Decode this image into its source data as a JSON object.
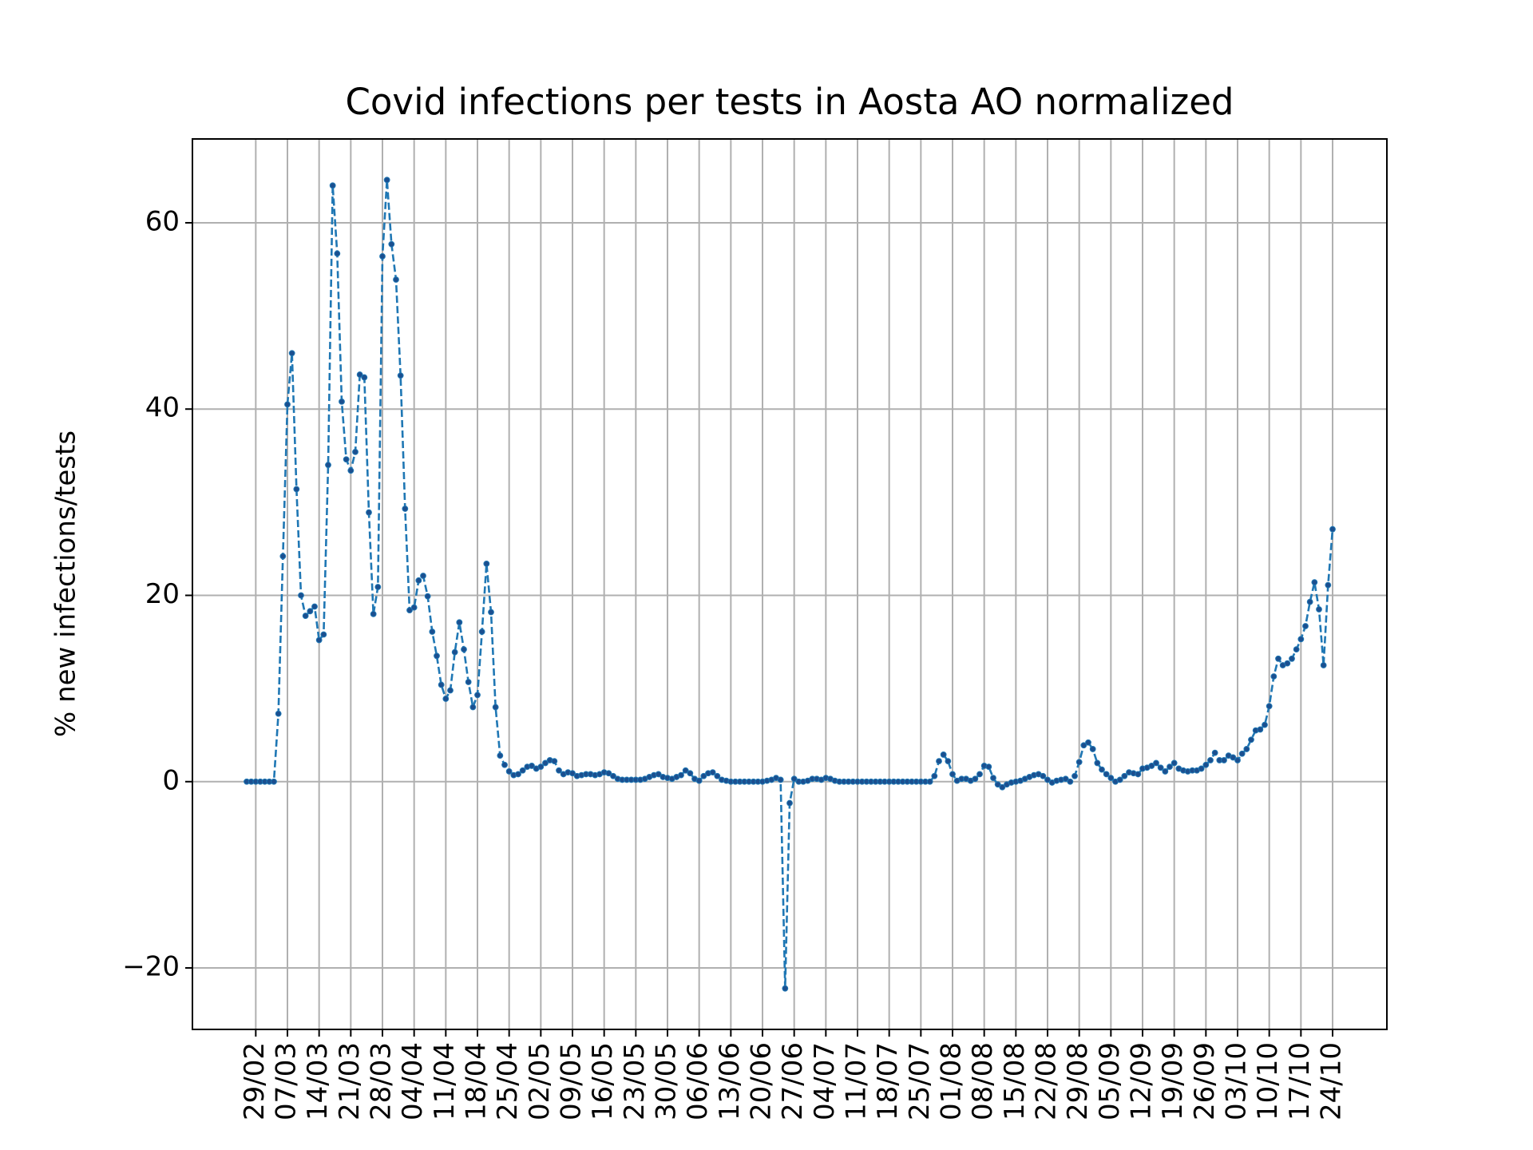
{
  "chart_data": {
    "type": "line",
    "title": "Covid infections per tests in Aosta AO normalized",
    "y_label": "% new infections/tests",
    "categories": [
      null,
      null,
      "29/02",
      null,
      null,
      null,
      null,
      null,
      null,
      "07/03",
      null,
      null,
      null,
      null,
      null,
      null,
      "14/03",
      null,
      null,
      null,
      null,
      null,
      null,
      "21/03",
      null,
      null,
      null,
      null,
      null,
      null,
      "28/03",
      null,
      null,
      null,
      null,
      null,
      null,
      "04/04",
      null,
      null,
      null,
      null,
      null,
      null,
      "11/04",
      null,
      null,
      null,
      null,
      null,
      null,
      "18/04",
      null,
      null,
      null,
      null,
      null,
      null,
      "25/04",
      null,
      null,
      null,
      null,
      null,
      null,
      "02/05",
      null,
      null,
      null,
      null,
      null,
      null,
      "09/05",
      null,
      null,
      null,
      null,
      null,
      null,
      "16/05",
      null,
      null,
      null,
      null,
      null,
      null,
      "23/05",
      null,
      null,
      null,
      null,
      null,
      null,
      "30/05",
      null,
      null,
      null,
      null,
      null,
      null,
      "06/06",
      null,
      null,
      null,
      null,
      null,
      null,
      "13/06",
      null,
      null,
      null,
      null,
      null,
      null,
      "20/06",
      null,
      null,
      null,
      null,
      null,
      null,
      "27/06",
      null,
      null,
      null,
      null,
      null,
      null,
      "04/07",
      null,
      null,
      null,
      null,
      null,
      null,
      "11/07",
      null,
      null,
      null,
      null,
      null,
      null,
      "18/07",
      null,
      null,
      null,
      null,
      null,
      null,
      "25/07",
      null,
      null,
      null,
      null,
      null,
      null,
      "01/08",
      null,
      null,
      null,
      null,
      null,
      null,
      "08/08",
      null,
      null,
      null,
      null,
      null,
      null,
      "15/08",
      null,
      null,
      null,
      null,
      null,
      null,
      "22/08",
      null,
      null,
      null,
      null,
      null,
      null,
      "29/08",
      null,
      null,
      null,
      null,
      null,
      null,
      "05/09",
      null,
      null,
      null,
      null,
      null,
      null,
      "12/09",
      null,
      null,
      null,
      null,
      null,
      null,
      "19/09",
      null,
      null,
      null,
      null,
      null,
      null,
      "26/09",
      null,
      null,
      null,
      null,
      null,
      null,
      "03/10",
      null,
      null,
      null,
      null,
      null,
      null,
      "10/10",
      null,
      null,
      null,
      null,
      null,
      null,
      "17/10",
      null,
      null,
      null,
      null,
      null,
      null,
      "24/10"
    ],
    "series": [
      {
        "color": "#1f77b4",
        "marker_color": "#1b4f8f",
        "values": [
          0,
          0,
          0,
          0,
          0,
          0,
          0,
          7.3,
          24.2,
          40.5,
          46,
          31.4,
          20,
          17.8,
          18.3,
          18.8,
          15.2,
          15.8,
          34,
          64,
          56.7,
          40.8,
          34.6,
          33.4,
          35.4,
          43.7,
          43.4,
          28.9,
          18,
          20.9,
          56.4,
          64.6,
          57.7,
          53.9,
          43.6,
          29.3,
          18.4,
          18.7,
          21.6,
          22.1,
          19.9,
          16.1,
          13.5,
          10.4,
          8.9,
          9.8,
          13.9,
          17.1,
          14.2,
          10.7,
          8,
          9.3,
          16.1,
          23.4,
          18.2,
          8,
          2.8,
          1.8,
          1.1,
          0.7,
          0.8,
          1.2,
          1.6,
          1.7,
          1.4,
          1.6,
          2,
          2.3,
          2.2,
          1.2,
          0.8,
          1,
          0.9,
          0.6,
          0.7,
          0.8,
          0.8,
          0.7,
          0.8,
          1,
          0.9,
          0.6,
          0.3,
          0.2,
          0.2,
          0.2,
          0.2,
          0.2,
          0.3,
          0.5,
          0.7,
          0.8,
          0.5,
          0.4,
          0.3,
          0.5,
          0.7,
          1.2,
          0.9,
          0.3,
          0.1,
          0.6,
          0.9,
          1,
          0.6,
          0.2,
          0.1,
          0,
          0,
          0,
          0,
          0,
          0,
          0,
          0,
          0.1,
          0.2,
          0.4,
          0.2,
          -22.2,
          -2.3,
          0.3,
          0,
          0,
          0.1,
          0.3,
          0.3,
          0.2,
          0.4,
          0.3,
          0.1,
          0,
          0,
          0,
          0,
          0,
          0,
          0,
          0,
          0,
          0,
          0,
          0,
          0,
          0,
          0,
          0,
          0,
          0,
          0,
          0,
          0,
          0.6,
          2.2,
          2.9,
          2.2,
          0.8,
          0.1,
          0.3,
          0.3,
          0.1,
          0.3,
          0.8,
          1.7,
          1.6,
          0.4,
          -0.3,
          -0.6,
          -0.3,
          -0.1,
          0,
          0.1,
          0.3,
          0.5,
          0.7,
          0.8,
          0.6,
          0.2,
          -0.1,
          0.1,
          0.2,
          0.3,
          0,
          0.6,
          2.1,
          3.9,
          4.2,
          3.5,
          2,
          1.3,
          0.8,
          0.4,
          0,
          0.2,
          0.6,
          1,
          0.9,
          0.8,
          1.4,
          1.5,
          1.7,
          2,
          1.5,
          1.1,
          1.6,
          2,
          1.4,
          1.2,
          1.1,
          1.2,
          1.2,
          1.4,
          1.8,
          2.3,
          3.1,
          2.3,
          2.3,
          2.8,
          2.6,
          2.3,
          3,
          3.5,
          4.5,
          5.5,
          5.6,
          6.1,
          8.1,
          11.3,
          13.2,
          12.5,
          12.7,
          13.2,
          14.2,
          15.3,
          16.7,
          19.3,
          21.4,
          18.5,
          12.5,
          21.1,
          27.1
        ]
      }
    ],
    "ylim": [
      -26.6,
      69
    ],
    "yticks": [
      {
        "value": -20,
        "label": "−20"
      },
      0,
      20,
      40,
      60
    ],
    "grid": true
  }
}
